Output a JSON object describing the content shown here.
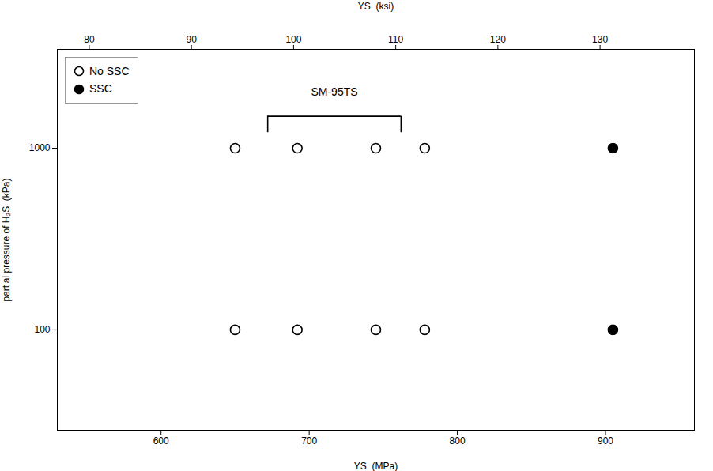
{
  "chart_data": {
    "type": "scatter",
    "xlabel": "YS  (MPa)",
    "x2label": "YS  (ksi)",
    "ylabel": "partial pressure of H₂S  (kPa)",
    "xlim": [
      530,
      960
    ],
    "xticks": [
      600,
      700,
      800,
      900
    ],
    "x2lim": [
      76.8712,
      139.2384
    ],
    "x2ticks": [
      80,
      90,
      100,
      110,
      120,
      130
    ],
    "ylim": [
      28,
      3500
    ],
    "yticks": [
      100,
      1000
    ],
    "log": "y",
    "grid": false,
    "legend": "upper left",
    "series": [
      {
        "name": "No SSC",
        "color": "black",
        "marker": "open circle",
        "x": [
          650,
          692,
          745,
          778,
          650,
          692,
          745,
          778
        ],
        "values": [
          1000,
          1000,
          1000,
          1000,
          100,
          100,
          100,
          100
        ]
      },
      {
        "name": "SSC",
        "color": "black",
        "marker": "circle",
        "x": [
          905,
          905
        ],
        "values": [
          1000,
          100
        ]
      }
    ],
    "annotations": [
      {
        "text": "SM-95TS",
        "x": 717,
        "y": 1950,
        "bracket": {
          "x1": 672,
          "x2": 762,
          "y": 1500,
          "tick_y": 1220
        }
      }
    ]
  }
}
